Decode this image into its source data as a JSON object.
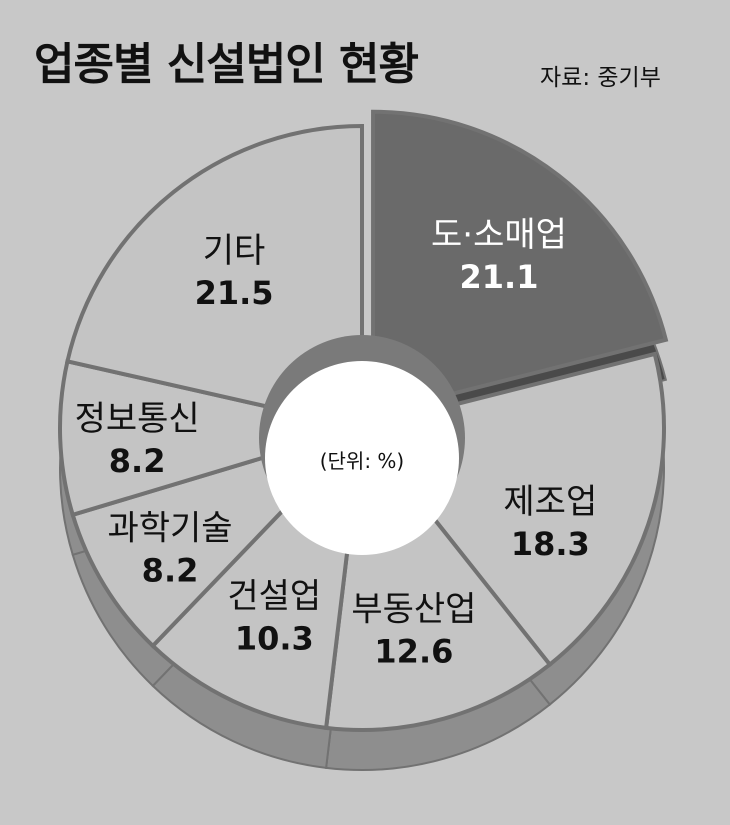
{
  "title": "업종별 신설법인 현황",
  "source": "자료: 중기부",
  "unit_note": "(단위: %)",
  "colors": {
    "background": "#c8c8c8",
    "highlight_top": "#6a6a6a",
    "highlight_side": "#4a4a4a",
    "slice_top": "#c4c4c4",
    "slice_side": "#8e8e8e",
    "divider": "#727272"
  },
  "chart_data": {
    "type": "pie",
    "title": "업종별 신설법인 현황",
    "unit": "%",
    "categories": [
      "도·소매업",
      "제조업",
      "부동산업",
      "건설업",
      "과학기술",
      "정보통신",
      "기타"
    ],
    "values": [
      21.1,
      18.3,
      12.6,
      10.3,
      8.2,
      8.2,
      21.5
    ],
    "value_labels": [
      "21.1",
      "18.3",
      "12.6",
      "10.3",
      "8.2",
      "8.2",
      "21.5"
    ],
    "highlighted": "도·소매업",
    "donut": true,
    "legend": "none"
  }
}
